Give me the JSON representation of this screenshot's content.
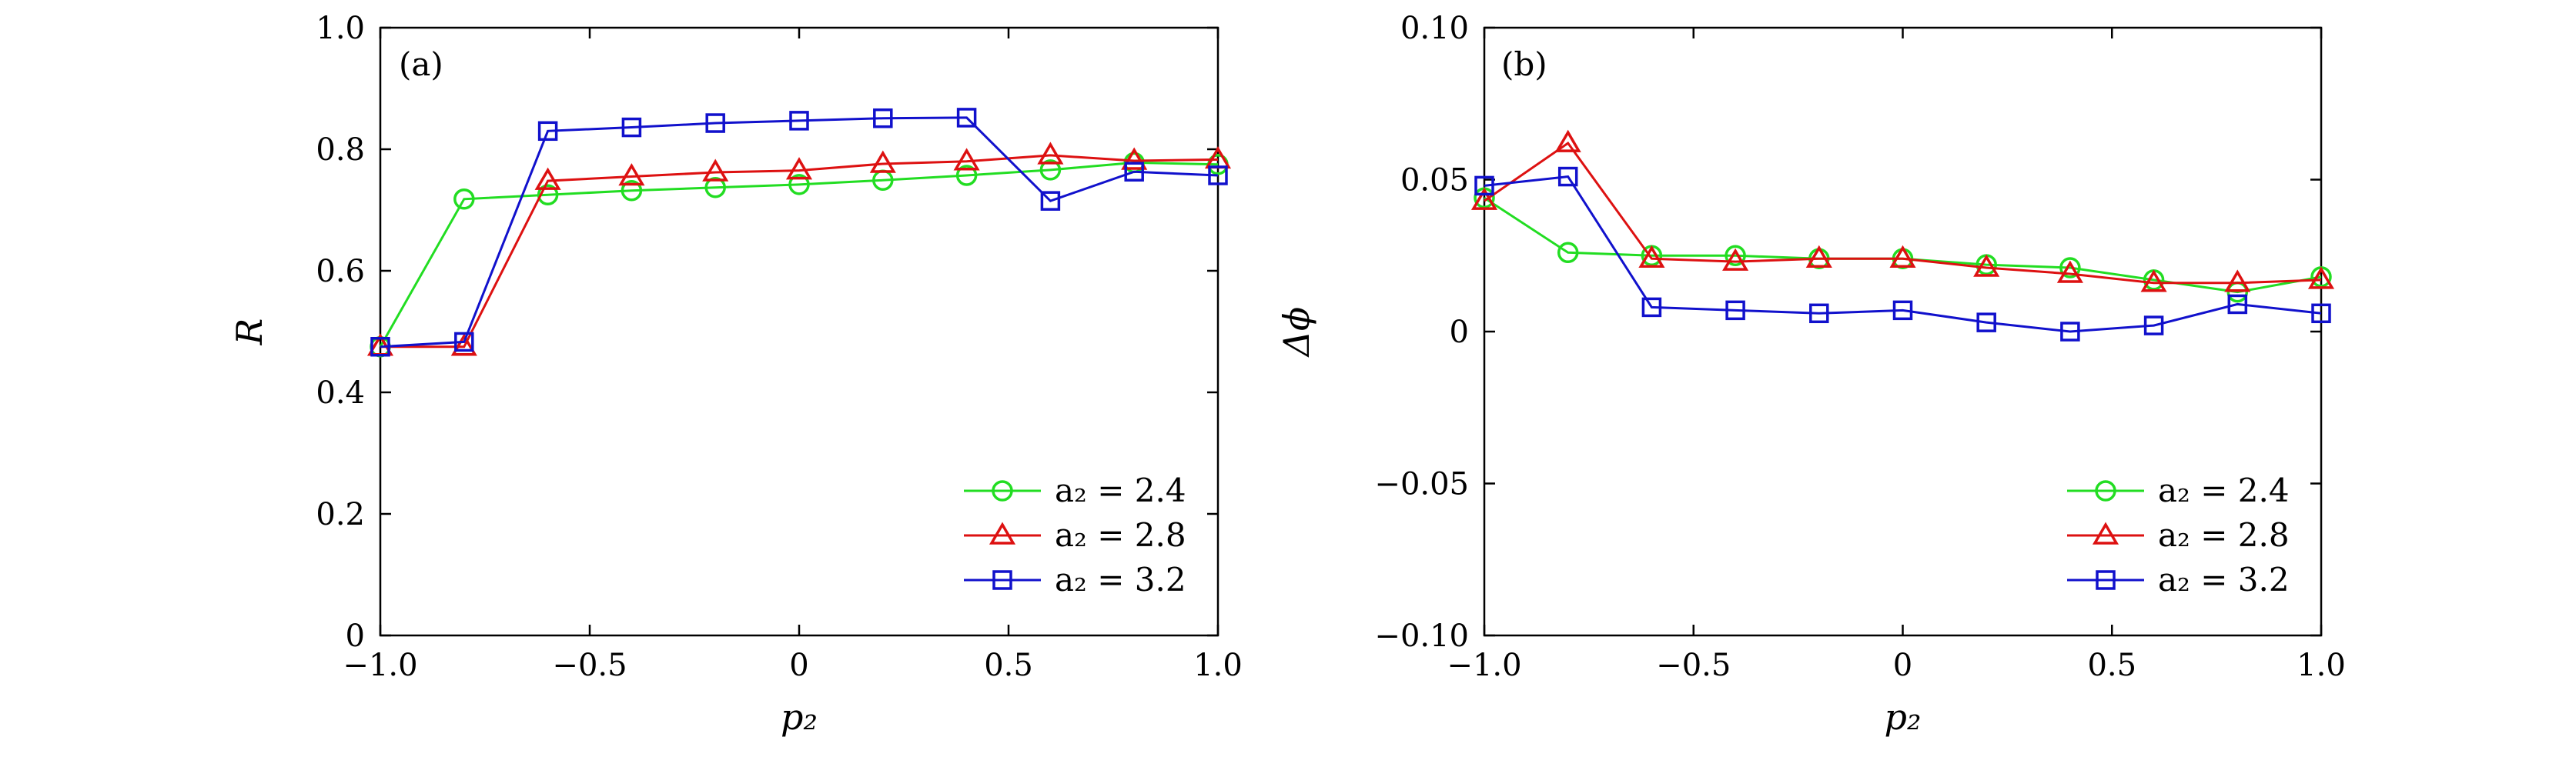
{
  "chart_data": [
    {
      "type": "line",
      "panel_label": "(a)",
      "xlabel": "p₂",
      "ylabel": "R",
      "xlim": [
        -1.0,
        1.0
      ],
      "ylim": [
        0,
        1.0
      ],
      "xticks": [
        -1.0,
        -0.5,
        0,
        0.5,
        1.0
      ],
      "xtick_labels": [
        "−1.0",
        "−0.5",
        "0",
        "0.5",
        "1.0"
      ],
      "yticks": [
        0,
        0.2,
        0.4,
        0.6,
        0.8,
        1.0
      ],
      "ytick_labels": [
        "0",
        "0.2",
        "0.4",
        "0.6",
        "0.8",
        "1.0"
      ],
      "legend_position": "bottom-right",
      "x": [
        -1.0,
        -0.8,
        -0.6,
        -0.4,
        -0.2,
        0.0,
        0.2,
        0.4,
        0.6,
        0.8,
        1.0
      ],
      "series": [
        {
          "name": "a₂ = 2.4",
          "color": "#22dd22",
          "marker": "circle",
          "values": [
            0.475,
            0.718,
            0.725,
            0.732,
            0.737,
            0.742,
            0.749,
            0.757,
            0.766,
            0.778,
            0.775
          ]
        },
        {
          "name": "a₂ = 2.8",
          "color": "#dd1111",
          "marker": "triangle",
          "values": [
            0.475,
            0.475,
            0.748,
            0.755,
            0.762,
            0.765,
            0.776,
            0.78,
            0.79,
            0.781,
            0.783
          ]
        },
        {
          "name": "a₂ = 3.2",
          "color": "#1111cc",
          "marker": "square",
          "values": [
            0.475,
            0.483,
            0.83,
            0.836,
            0.843,
            0.847,
            0.851,
            0.852,
            0.715,
            0.763,
            0.757
          ]
        }
      ]
    },
    {
      "type": "line",
      "panel_label": "(b)",
      "xlabel": "p₂",
      "ylabel": "Δϕ",
      "xlim": [
        -1.0,
        1.0
      ],
      "ylim": [
        -0.1,
        0.1
      ],
      "xticks": [
        -1.0,
        -0.5,
        0,
        0.5,
        1.0
      ],
      "xtick_labels": [
        "−1.0",
        "−0.5",
        "0",
        "0.5",
        "1.0"
      ],
      "yticks": [
        -0.1,
        -0.05,
        0,
        0.05,
        0.1
      ],
      "ytick_labels": [
        "−0.10",
        "−0.05",
        "0",
        "0.05",
        "0.10"
      ],
      "legend_position": "bottom-right",
      "x": [
        -1.0,
        -0.8,
        -0.6,
        -0.4,
        -0.2,
        0.0,
        0.2,
        0.4,
        0.6,
        0.8,
        1.0
      ],
      "series": [
        {
          "name": "a₂ = 2.4",
          "color": "#22dd22",
          "marker": "circle",
          "values": [
            0.044,
            0.026,
            0.025,
            0.025,
            0.024,
            0.024,
            0.022,
            0.021,
            0.017,
            0.013,
            0.018
          ]
        },
        {
          "name": "a₂ = 2.8",
          "color": "#dd1111",
          "marker": "triangle",
          "values": [
            0.043,
            0.062,
            0.024,
            0.023,
            0.024,
            0.024,
            0.021,
            0.019,
            0.016,
            0.016,
            0.017
          ]
        },
        {
          "name": "a₂ = 3.2",
          "color": "#1111cc",
          "marker": "square",
          "values": [
            0.048,
            0.051,
            0.008,
            0.007,
            0.006,
            0.007,
            0.003,
            0.0,
            0.002,
            0.009,
            0.006
          ]
        }
      ]
    }
  ]
}
